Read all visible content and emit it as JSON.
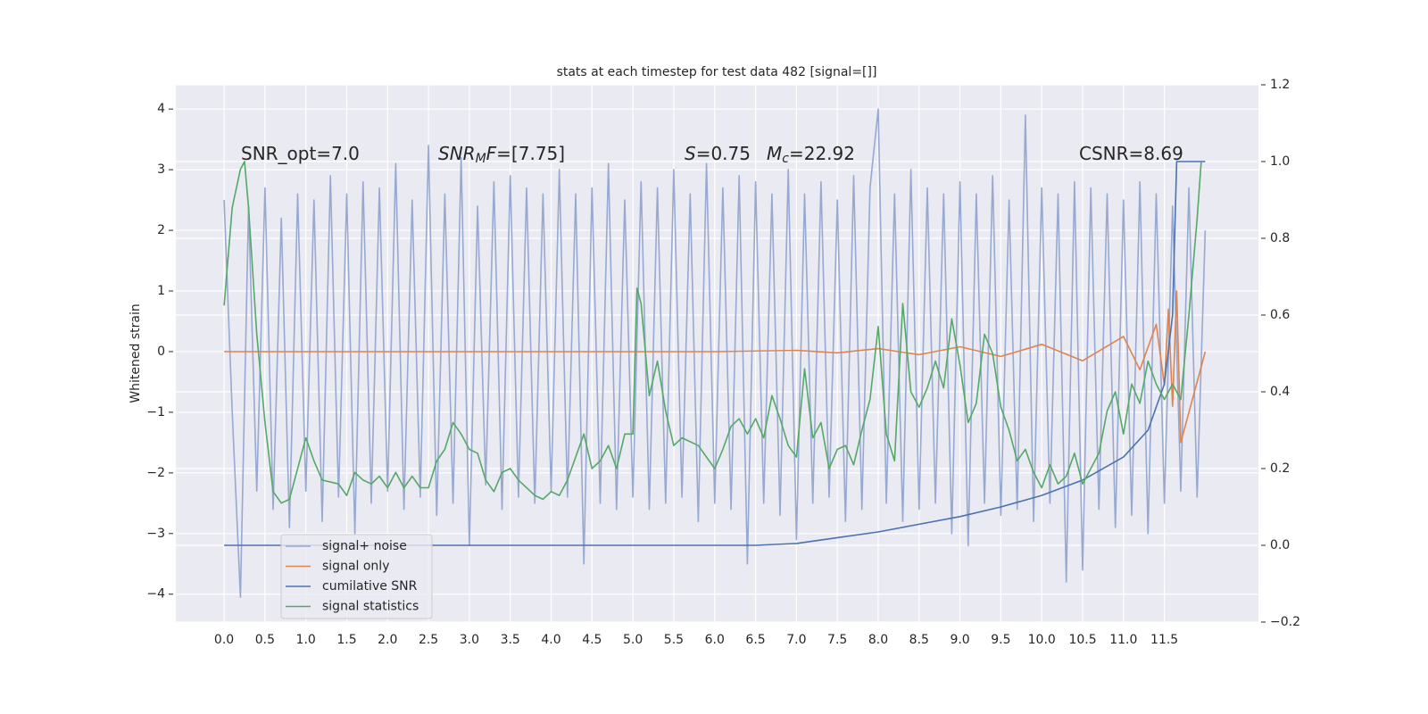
{
  "chart_data": {
    "type": "line",
    "title": "stats at each timestep for test data 482 [signal=[]]",
    "ylabel": "Whitened strain",
    "annotations": [
      [
        {
          "text": "SNR_opt=7.0",
          "style": "normal"
        }
      ],
      [
        {
          "text": "SNR",
          "style": "italic"
        },
        {
          "text": "M",
          "style": "sub"
        },
        {
          "text": "F",
          "style": "italic"
        },
        {
          "text": "=[7.75]",
          "style": "normal"
        }
      ],
      [
        {
          "text": "S",
          "style": "italic"
        },
        {
          "text": "=0.75",
          "style": "normal"
        }
      ],
      [
        {
          "text": "M",
          "style": "italic"
        },
        {
          "text": "c",
          "style": "sub"
        },
        {
          "text": "=22.92",
          "style": "normal"
        }
      ],
      [
        {
          "text": "CSNR=8.69",
          "style": "normal"
        }
      ]
    ],
    "xlim": [
      -0.59,
      12.65
    ],
    "ylim": [
      -4.46,
      4.4
    ],
    "y2lim": [
      -0.2,
      1.2
    ],
    "xticks": [
      {
        "value": 0,
        "label": "0.0"
      },
      {
        "value": 0.5,
        "label": "0.5"
      },
      {
        "value": 1,
        "label": "1.0"
      },
      {
        "value": 1.5,
        "label": "1.5"
      },
      {
        "value": 2,
        "label": "2.0"
      },
      {
        "value": 2.5,
        "label": "2.5"
      },
      {
        "value": 3,
        "label": "3.0"
      },
      {
        "value": 3.5,
        "label": "3.5"
      },
      {
        "value": 4,
        "label": "4.0"
      },
      {
        "value": 4.5,
        "label": "4.5"
      },
      {
        "value": 5,
        "label": "5.0"
      },
      {
        "value": 5.5,
        "label": "5.5"
      },
      {
        "value": 6,
        "label": "6.0"
      },
      {
        "value": 6.5,
        "label": "6.5"
      },
      {
        "value": 7,
        "label": "7.0"
      },
      {
        "value": 7.5,
        "label": "7.5"
      },
      {
        "value": 8,
        "label": "8.0"
      },
      {
        "value": 8.5,
        "label": "8.5"
      },
      {
        "value": 9,
        "label": "9.0"
      },
      {
        "value": 9.5,
        "label": "9.5"
      },
      {
        "value": 10,
        "label": "10.0"
      },
      {
        "value": 10.5,
        "label": "10.5"
      },
      {
        "value": 11,
        "label": "11.0"
      },
      {
        "value": 11.5,
        "label": "11.5"
      }
    ],
    "yticks": [
      {
        "value": -4,
        "label": "−4"
      },
      {
        "value": -3,
        "label": "−3"
      },
      {
        "value": -2,
        "label": "−2"
      },
      {
        "value": -1,
        "label": "−1"
      },
      0,
      1,
      2,
      3,
      4
    ],
    "y2ticks": [
      {
        "value": -0.2,
        "label": "−0.2"
      },
      {
        "value": 0,
        "label": "0.0"
      },
      0.2,
      0.4,
      0.6,
      0.8,
      {
        "value": 1,
        "label": "1.0"
      },
      1.2
    ],
    "grid": true,
    "legend": "lower left",
    "series": [
      {
        "name": "signal+ noise",
        "color": "#97a9d0",
        "axis": "y",
        "x": [
          0,
          0.1,
          0.2,
          0.3,
          0.4,
          0.5,
          0.6,
          0.7,
          0.8,
          0.9,
          1,
          1.1,
          1.2,
          1.3,
          1.4,
          1.5,
          1.6,
          1.7,
          1.8,
          1.9,
          2,
          2.1,
          2.2,
          2.3,
          2.4,
          2.5,
          2.6,
          2.7,
          2.8,
          2.9,
          3,
          3.1,
          3.2,
          3.3,
          3.4,
          3.5,
          3.6,
          3.7,
          3.8,
          3.9,
          4,
          4.1,
          4.2,
          4.3,
          4.4,
          4.5,
          4.6,
          4.7,
          4.8,
          4.9,
          5,
          5.1,
          5.2,
          5.3,
          5.4,
          5.5,
          5.6,
          5.7,
          5.8,
          5.9,
          6,
          6.1,
          6.2,
          6.3,
          6.4,
          6.5,
          6.6,
          6.7,
          6.8,
          6.9,
          7,
          7.1,
          7.2,
          7.3,
          7.4,
          7.5,
          7.6,
          7.7,
          7.8,
          7.9,
          8,
          8.1,
          8.2,
          8.3,
          8.4,
          8.5,
          8.6,
          8.7,
          8.8,
          8.9,
          9,
          9.1,
          9.2,
          9.3,
          9.4,
          9.5,
          9.6,
          9.7,
          9.8,
          9.9,
          10,
          10.1,
          10.2,
          10.3,
          10.4,
          10.5,
          10.6,
          10.7,
          10.8,
          10.9,
          11,
          11.1,
          11.2,
          11.3,
          11.4,
          11.5,
          11.6,
          11.7,
          11.8,
          11.9,
          12
        ],
        "values": [
          2.5,
          -1.0,
          -4.05,
          2.4,
          -2.3,
          2.7,
          -2.6,
          2.2,
          -2.9,
          2.6,
          -2.3,
          2.5,
          -2.8,
          2.9,
          -2.4,
          2.6,
          -3.0,
          2.8,
          -2.5,
          2.7,
          -2.3,
          3.1,
          -2.6,
          2.5,
          -2.4,
          3.4,
          -2.7,
          2.6,
          -2.5,
          3.2,
          -3.2,
          2.4,
          -2.2,
          2.8,
          -2.6,
          2.9,
          -2.4,
          2.7,
          -2.5,
          2.6,
          -2.3,
          3.0,
          -2.4,
          2.6,
          -3.5,
          2.7,
          -2.5,
          3.1,
          -2.6,
          2.5,
          -2.4,
          2.8,
          -2.6,
          2.7,
          -2.5,
          3.0,
          -2.4,
          2.6,
          -2.8,
          3.1,
          -2.5,
          2.7,
          -2.6,
          2.9,
          -3.5,
          2.8,
          -2.5,
          2.6,
          -2.7,
          3.0,
          -3.1,
          2.6,
          -2.5,
          2.8,
          -2.4,
          2.5,
          -2.8,
          2.9,
          -2.6,
          2.7,
          4.0,
          -2.5,
          2.6,
          -2.8,
          3.0,
          -2.6,
          2.7,
          -2.5,
          2.6,
          -3.0,
          2.8,
          -3.2,
          2.6,
          -2.5,
          2.9,
          -2.7,
          2.5,
          -2.6,
          3.9,
          -2.8,
          2.7,
          -2.5,
          2.6,
          -3.8,
          2.8,
          -3.6,
          2.7,
          -2.6,
          2.6,
          -2.9,
          2.5,
          -2.7,
          2.8,
          -3.0,
          2.6,
          -2.5,
          2.4,
          -2.3,
          2.7,
          -2.4,
          2.0
        ]
      },
      {
        "name": "signal only",
        "color": "#dd8452",
        "axis": "y",
        "x": [
          0,
          2,
          4,
          6,
          7,
          7.5,
          8,
          8.5,
          9,
          9.5,
          10,
          10.5,
          11,
          11.2,
          11.4,
          11.5,
          11.55,
          11.6,
          11.65,
          11.7,
          12
        ],
        "values": [
          0,
          0,
          0,
          0,
          0.02,
          -0.02,
          0.05,
          -0.05,
          0.08,
          -0.08,
          0.12,
          -0.15,
          0.25,
          -0.3,
          0.45,
          -0.55,
          0.7,
          -0.9,
          1.0,
          -1.5,
          0
        ]
      },
      {
        "name": "cumilative SNR",
        "color": "#4c72b0",
        "axis": "y2",
        "x": [
          0,
          6.5,
          7,
          7.5,
          8,
          8.5,
          9,
          9.5,
          10,
          10.5,
          11,
          11.3,
          11.5,
          11.6,
          11.65,
          12
        ],
        "values": [
          0,
          0,
          0.005,
          0.02,
          0.035,
          0.055,
          0.075,
          0.1,
          0.13,
          0.17,
          0.23,
          0.3,
          0.42,
          0.6,
          1.0,
          1.0
        ]
      },
      {
        "name": "signal statistics",
        "color": "#55a868",
        "axis": "y2",
        "x": [
          0,
          0.1,
          0.2,
          0.25,
          0.3,
          0.4,
          0.5,
          0.6,
          0.7,
          0.8,
          0.9,
          1,
          1.1,
          1.2,
          1.4,
          1.5,
          1.6,
          1.7,
          1.8,
          1.9,
          2,
          2.1,
          2.2,
          2.3,
          2.4,
          2.5,
          2.6,
          2.7,
          2.8,
          2.9,
          3,
          3.1,
          3.2,
          3.3,
          3.4,
          3.5,
          3.6,
          3.8,
          3.9,
          4,
          4.1,
          4.2,
          4.3,
          4.4,
          4.5,
          4.6,
          4.7,
          4.8,
          4.9,
          5,
          5.05,
          5.1,
          5.2,
          5.3,
          5.4,
          5.5,
          5.6,
          5.7,
          5.8,
          6,
          6.1,
          6.2,
          6.3,
          6.4,
          6.5,
          6.6,
          6.7,
          6.8,
          6.9,
          7,
          7.1,
          7.2,
          7.3,
          7.4,
          7.5,
          7.6,
          7.7,
          7.8,
          7.9,
          8,
          8.1,
          8.2,
          8.3,
          8.4,
          8.5,
          8.6,
          8.7,
          8.8,
          8.9,
          9,
          9.1,
          9.2,
          9.3,
          9.4,
          9.5,
          9.6,
          9.7,
          9.8,
          9.9,
          10,
          10.1,
          10.2,
          10.3,
          10.4,
          10.5,
          10.6,
          10.7,
          10.8,
          10.9,
          11,
          11.1,
          11.2,
          11.3,
          11.4,
          11.5,
          11.6,
          11.7,
          11.8,
          11.9,
          11.95
        ],
        "values": [
          0.625,
          0.88,
          0.98,
          1.0,
          0.88,
          0.55,
          0.32,
          0.14,
          0.11,
          0.12,
          0.2,
          0.28,
          0.22,
          0.17,
          0.16,
          0.13,
          0.19,
          0.17,
          0.16,
          0.18,
          0.15,
          0.19,
          0.15,
          0.18,
          0.15,
          0.15,
          0.22,
          0.25,
          0.32,
          0.29,
          0.25,
          0.24,
          0.17,
          0.14,
          0.19,
          0.2,
          0.17,
          0.13,
          0.12,
          0.14,
          0.13,
          0.17,
          0.23,
          0.29,
          0.2,
          0.22,
          0.26,
          0.2,
          0.29,
          0.29,
          0.67,
          0.63,
          0.39,
          0.48,
          0.35,
          0.26,
          0.28,
          0.27,
          0.26,
          0.2,
          0.25,
          0.31,
          0.33,
          0.29,
          0.33,
          0.28,
          0.39,
          0.33,
          0.26,
          0.23,
          0.46,
          0.28,
          0.32,
          0.2,
          0.25,
          0.26,
          0.21,
          0.3,
          0.38,
          0.57,
          0.29,
          0.22,
          0.63,
          0.4,
          0.36,
          0.41,
          0.48,
          0.41,
          0.59,
          0.47,
          0.32,
          0.37,
          0.55,
          0.5,
          0.36,
          0.3,
          0.22,
          0.25,
          0.19,
          0.15,
          0.21,
          0.16,
          0.18,
          0.24,
          0.16,
          0.2,
          0.24,
          0.35,
          0.4,
          0.29,
          0.42,
          0.37,
          0.48,
          0.42,
          0.38,
          0.42,
          0.38,
          0.6,
          0.85,
          1.0
        ]
      }
    ]
  }
}
